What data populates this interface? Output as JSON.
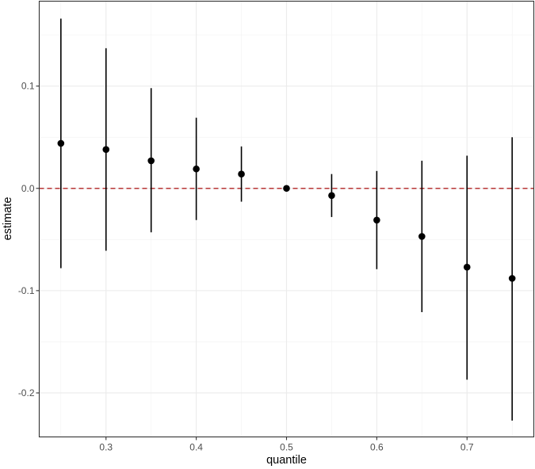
{
  "chart_data": {
    "type": "scatter",
    "xlabel": "quantile",
    "ylabel": "estimate",
    "xlim": [
      0.226,
      0.774
    ],
    "ylim": [
      -0.243,
      0.183
    ],
    "x_ticks": [
      0.3,
      0.4,
      0.5,
      0.6,
      0.7
    ],
    "x_tick_labels": [
      "0.3",
      "0.4",
      "0.5",
      "0.6",
      "0.7"
    ],
    "y_ticks": [
      -0.2,
      -0.1,
      0.0,
      0.1
    ],
    "y_tick_labels": [
      "-0.2",
      "-0.1",
      "0.0",
      "0.1"
    ],
    "x_minor_ticks": [
      0.25,
      0.35,
      0.45,
      0.55,
      0.65,
      0.75
    ],
    "y_minor_ticks": [
      -0.15,
      -0.05,
      0.05,
      0.15
    ],
    "grid": true,
    "reference_line": {
      "y": 0.0,
      "style": "dashed",
      "color": "#b22222"
    },
    "point_color": "#000000",
    "points": [
      {
        "x": 0.25,
        "y": 0.044,
        "lower": -0.078,
        "upper": 0.166
      },
      {
        "x": 0.3,
        "y": 0.038,
        "lower": -0.061,
        "upper": 0.137
      },
      {
        "x": 0.35,
        "y": 0.027,
        "lower": -0.043,
        "upper": 0.098
      },
      {
        "x": 0.4,
        "y": 0.019,
        "lower": -0.031,
        "upper": 0.069
      },
      {
        "x": 0.45,
        "y": 0.014,
        "lower": -0.013,
        "upper": 0.041
      },
      {
        "x": 0.5,
        "y": 0.0,
        "lower": 0.0,
        "upper": 0.0
      },
      {
        "x": 0.55,
        "y": -0.007,
        "lower": -0.028,
        "upper": 0.014
      },
      {
        "x": 0.6,
        "y": -0.031,
        "lower": -0.079,
        "upper": 0.017
      },
      {
        "x": 0.65,
        "y": -0.047,
        "lower": -0.121,
        "upper": 0.027
      },
      {
        "x": 0.7,
        "y": -0.077,
        "lower": -0.187,
        "upper": 0.032
      },
      {
        "x": 0.75,
        "y": -0.088,
        "lower": -0.227,
        "upper": 0.05
      }
    ]
  }
}
